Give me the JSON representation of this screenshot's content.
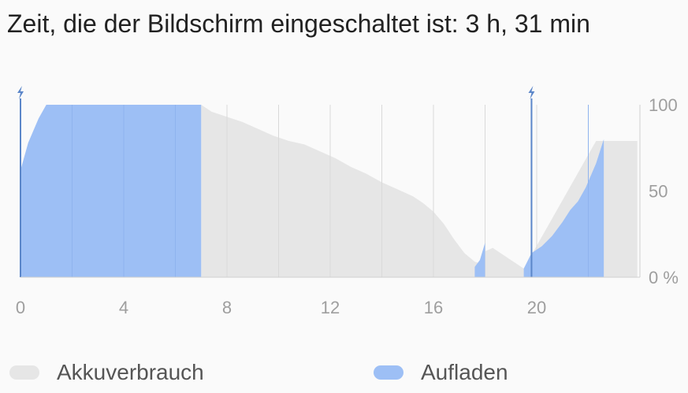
{
  "title": "Zeit, die der Bildschirm eingeschaltet ist: 3 h, 31 min",
  "legend": {
    "items": [
      {
        "label": "Akkuverbrauch",
        "color": "#e6e6e6"
      },
      {
        "label": "Aufladen",
        "color": "#9dbff5"
      }
    ]
  },
  "chart_data": {
    "type": "area",
    "title": "Zeit, die der Bildschirm eingeschaltet ist: 3 h, 31 min",
    "xlabel": "",
    "ylabel": "",
    "x_ticks": [
      "0",
      "4",
      "8",
      "12",
      "16",
      "20"
    ],
    "x_tick_values": [
      0,
      4,
      8,
      12,
      16,
      20
    ],
    "y_ticks": [
      "100",
      "50",
      "0 %"
    ],
    "y_tick_values": [
      100,
      50,
      0
    ],
    "xlim": [
      0,
      24
    ],
    "ylim": [
      0,
      100
    ],
    "grid": true,
    "legend_position": "bottom",
    "charge_markers": [
      0,
      19.8
    ],
    "series": [
      {
        "name": "Akkuverbrauch",
        "color": "#e6e6e6",
        "points": [
          [
            7.0,
            100
          ],
          [
            7.4,
            96
          ],
          [
            8.0,
            93
          ],
          [
            8.6,
            90
          ],
          [
            9.2,
            86
          ],
          [
            9.8,
            82
          ],
          [
            10.4,
            79
          ],
          [
            11.0,
            77
          ],
          [
            11.6,
            73
          ],
          [
            12.2,
            69
          ],
          [
            12.8,
            64
          ],
          [
            13.4,
            60
          ],
          [
            14.0,
            55
          ],
          [
            14.6,
            51
          ],
          [
            15.2,
            47
          ],
          [
            15.6,
            43
          ],
          [
            16.0,
            38
          ],
          [
            16.4,
            31
          ],
          [
            16.8,
            22
          ],
          [
            17.2,
            14
          ],
          [
            17.6,
            9
          ],
          [
            17.8,
            8
          ],
          [
            18.0,
            15
          ],
          [
            18.3,
            17
          ],
          [
            18.6,
            14
          ],
          [
            19.0,
            10
          ],
          [
            19.5,
            5
          ],
          [
            22.3,
            79
          ],
          [
            23.9,
            79
          ],
          [
            23.9,
            0
          ]
        ]
      },
      {
        "name": "Aufladen",
        "color": "#9dbff5",
        "points": [
          [
            0,
            62
          ],
          [
            0.3,
            78
          ],
          [
            0.7,
            92
          ],
          [
            1.0,
            100
          ],
          [
            7.0,
            100
          ]
        ],
        "segments": [
          [
            [
              0,
              62
            ],
            [
              0.3,
              78
            ],
            [
              0.7,
              92
            ],
            [
              1.0,
              100
            ],
            [
              7.0,
              100
            ]
          ],
          [
            [
              17.6,
              6
            ],
            [
              17.8,
              10
            ],
            [
              18.0,
              20
            ]
          ],
          [
            [
              19.5,
              5
            ],
            [
              19.8,
              14
            ],
            [
              20.2,
              18
            ],
            [
              20.6,
              24
            ],
            [
              21.0,
              32
            ],
            [
              21.3,
              39
            ],
            [
              21.6,
              44
            ],
            [
              21.9,
              52
            ],
            [
              22.3,
              66
            ],
            [
              22.6,
              80
            ]
          ]
        ]
      }
    ]
  }
}
